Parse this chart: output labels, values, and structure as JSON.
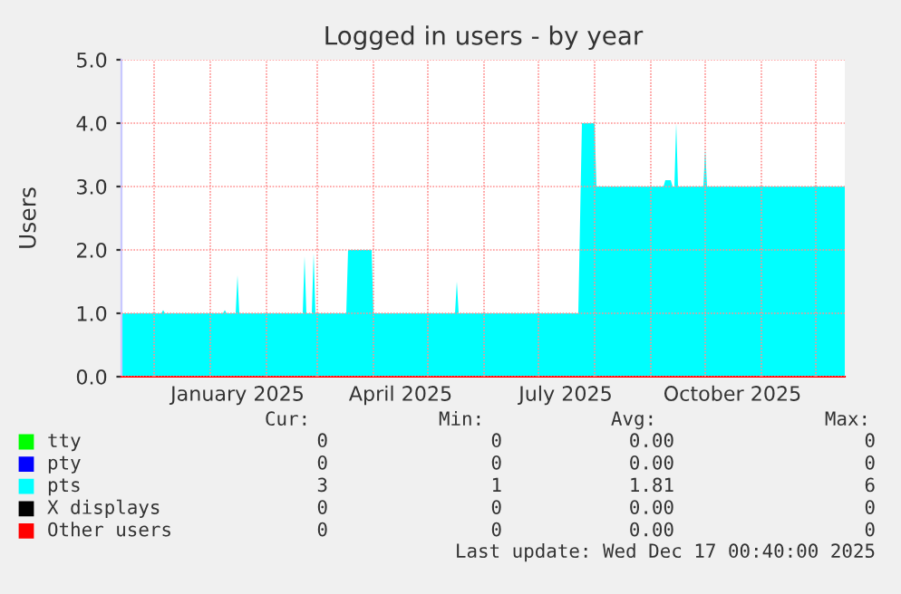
{
  "chart_data": {
    "type": "area",
    "title": "Logged in users - by year",
    "ylabel": "Users",
    "legend": "bottom",
    "grid": true,
    "xlim": [
      "2024-11-13",
      "2025-12-17"
    ],
    "xticks": [
      {
        "value": "2024-12-01",
        "label": null
      },
      {
        "value": "2025-01-01",
        "label": null
      },
      {
        "value": "2025-01-16",
        "label": "January 2025"
      },
      {
        "value": "2025-02-01",
        "label": null
      },
      {
        "value": "2025-03-01",
        "label": null
      },
      {
        "value": "2025-04-01",
        "label": null
      },
      {
        "value": "2025-04-16",
        "label": "April 2025"
      },
      {
        "value": "2025-05-01",
        "label": null
      },
      {
        "value": "2025-06-01",
        "label": null
      },
      {
        "value": "2025-07-01",
        "label": null
      },
      {
        "value": "2025-07-16",
        "label": "July 2025"
      },
      {
        "value": "2025-08-01",
        "label": null
      },
      {
        "value": "2025-09-01",
        "label": null
      },
      {
        "value": "2025-10-01",
        "label": null
      },
      {
        "value": "2025-10-16",
        "label": "October 2025"
      },
      {
        "value": "2025-11-01",
        "label": null
      },
      {
        "value": "2025-12-01",
        "label": null
      }
    ],
    "ylim": [
      0,
      5
    ],
    "yticks": [
      {
        "value": 0,
        "label": "0.0"
      },
      {
        "value": 1,
        "label": "1.0"
      },
      {
        "value": 2,
        "label": "2.0"
      },
      {
        "value": 3,
        "label": "3.0"
      },
      {
        "value": 4,
        "label": "4.0"
      },
      {
        "value": 5,
        "label": "5.0"
      }
    ],
    "series": [
      {
        "name": "tty",
        "color": "#00ff00"
      },
      {
        "name": "pty",
        "color": "#0000ff"
      },
      {
        "name": "pts",
        "color": "#00ffff",
        "x": [
          "2024-11-13",
          "2024-12-05",
          "2024-12-06",
          "2024-12-07",
          "2025-01-08",
          "2025-01-09",
          "2025-01-10",
          "2025-01-15",
          "2025-01-16",
          "2025-01-17",
          "2025-02-21",
          "2025-02-22",
          "2025-02-23",
          "2025-02-26",
          "2025-02-27",
          "2025-02-28",
          "2025-03-17",
          "2025-03-18",
          "2025-03-31",
          "2025-04-01",
          "2025-05-16",
          "2025-05-17",
          "2025-05-18",
          "2025-07-23",
          "2025-07-25",
          "2025-08-01",
          "2025-08-02",
          "2025-09-08",
          "2025-09-09",
          "2025-09-12",
          "2025-09-13",
          "2025-09-14",
          "2025-09-15",
          "2025-09-16",
          "2025-09-30",
          "2025-10-01",
          "2025-10-02",
          "2025-12-17"
        ],
        "values": [
          1,
          1,
          1.05,
          1,
          1,
          1.05,
          1,
          1,
          1.6,
          1,
          1,
          1.9,
          1,
          1,
          1.95,
          1,
          1,
          2,
          2,
          1,
          1,
          1.5,
          1,
          1,
          4,
          4,
          3,
          3,
          3.1,
          3.1,
          3,
          3,
          4,
          3,
          3,
          3.6,
          3,
          3
        ]
      },
      {
        "name": "X displays",
        "color": "#000000"
      },
      {
        "name": "Other users",
        "color": "#ff0000"
      }
    ],
    "annotations": [
      "Cur:",
      "Min:",
      "Avg:",
      "Max:",
      "0",
      "0",
      "0.00",
      "0",
      "0",
      "0",
      "0.00",
      "0",
      "3",
      "1",
      "1.81",
      "6",
      "0",
      "0",
      "0.00",
      "0",
      "0",
      "0",
      "0.00",
      "0",
      "Last update: Wed Dec 17 00:40:00 2025"
    ]
  }
}
